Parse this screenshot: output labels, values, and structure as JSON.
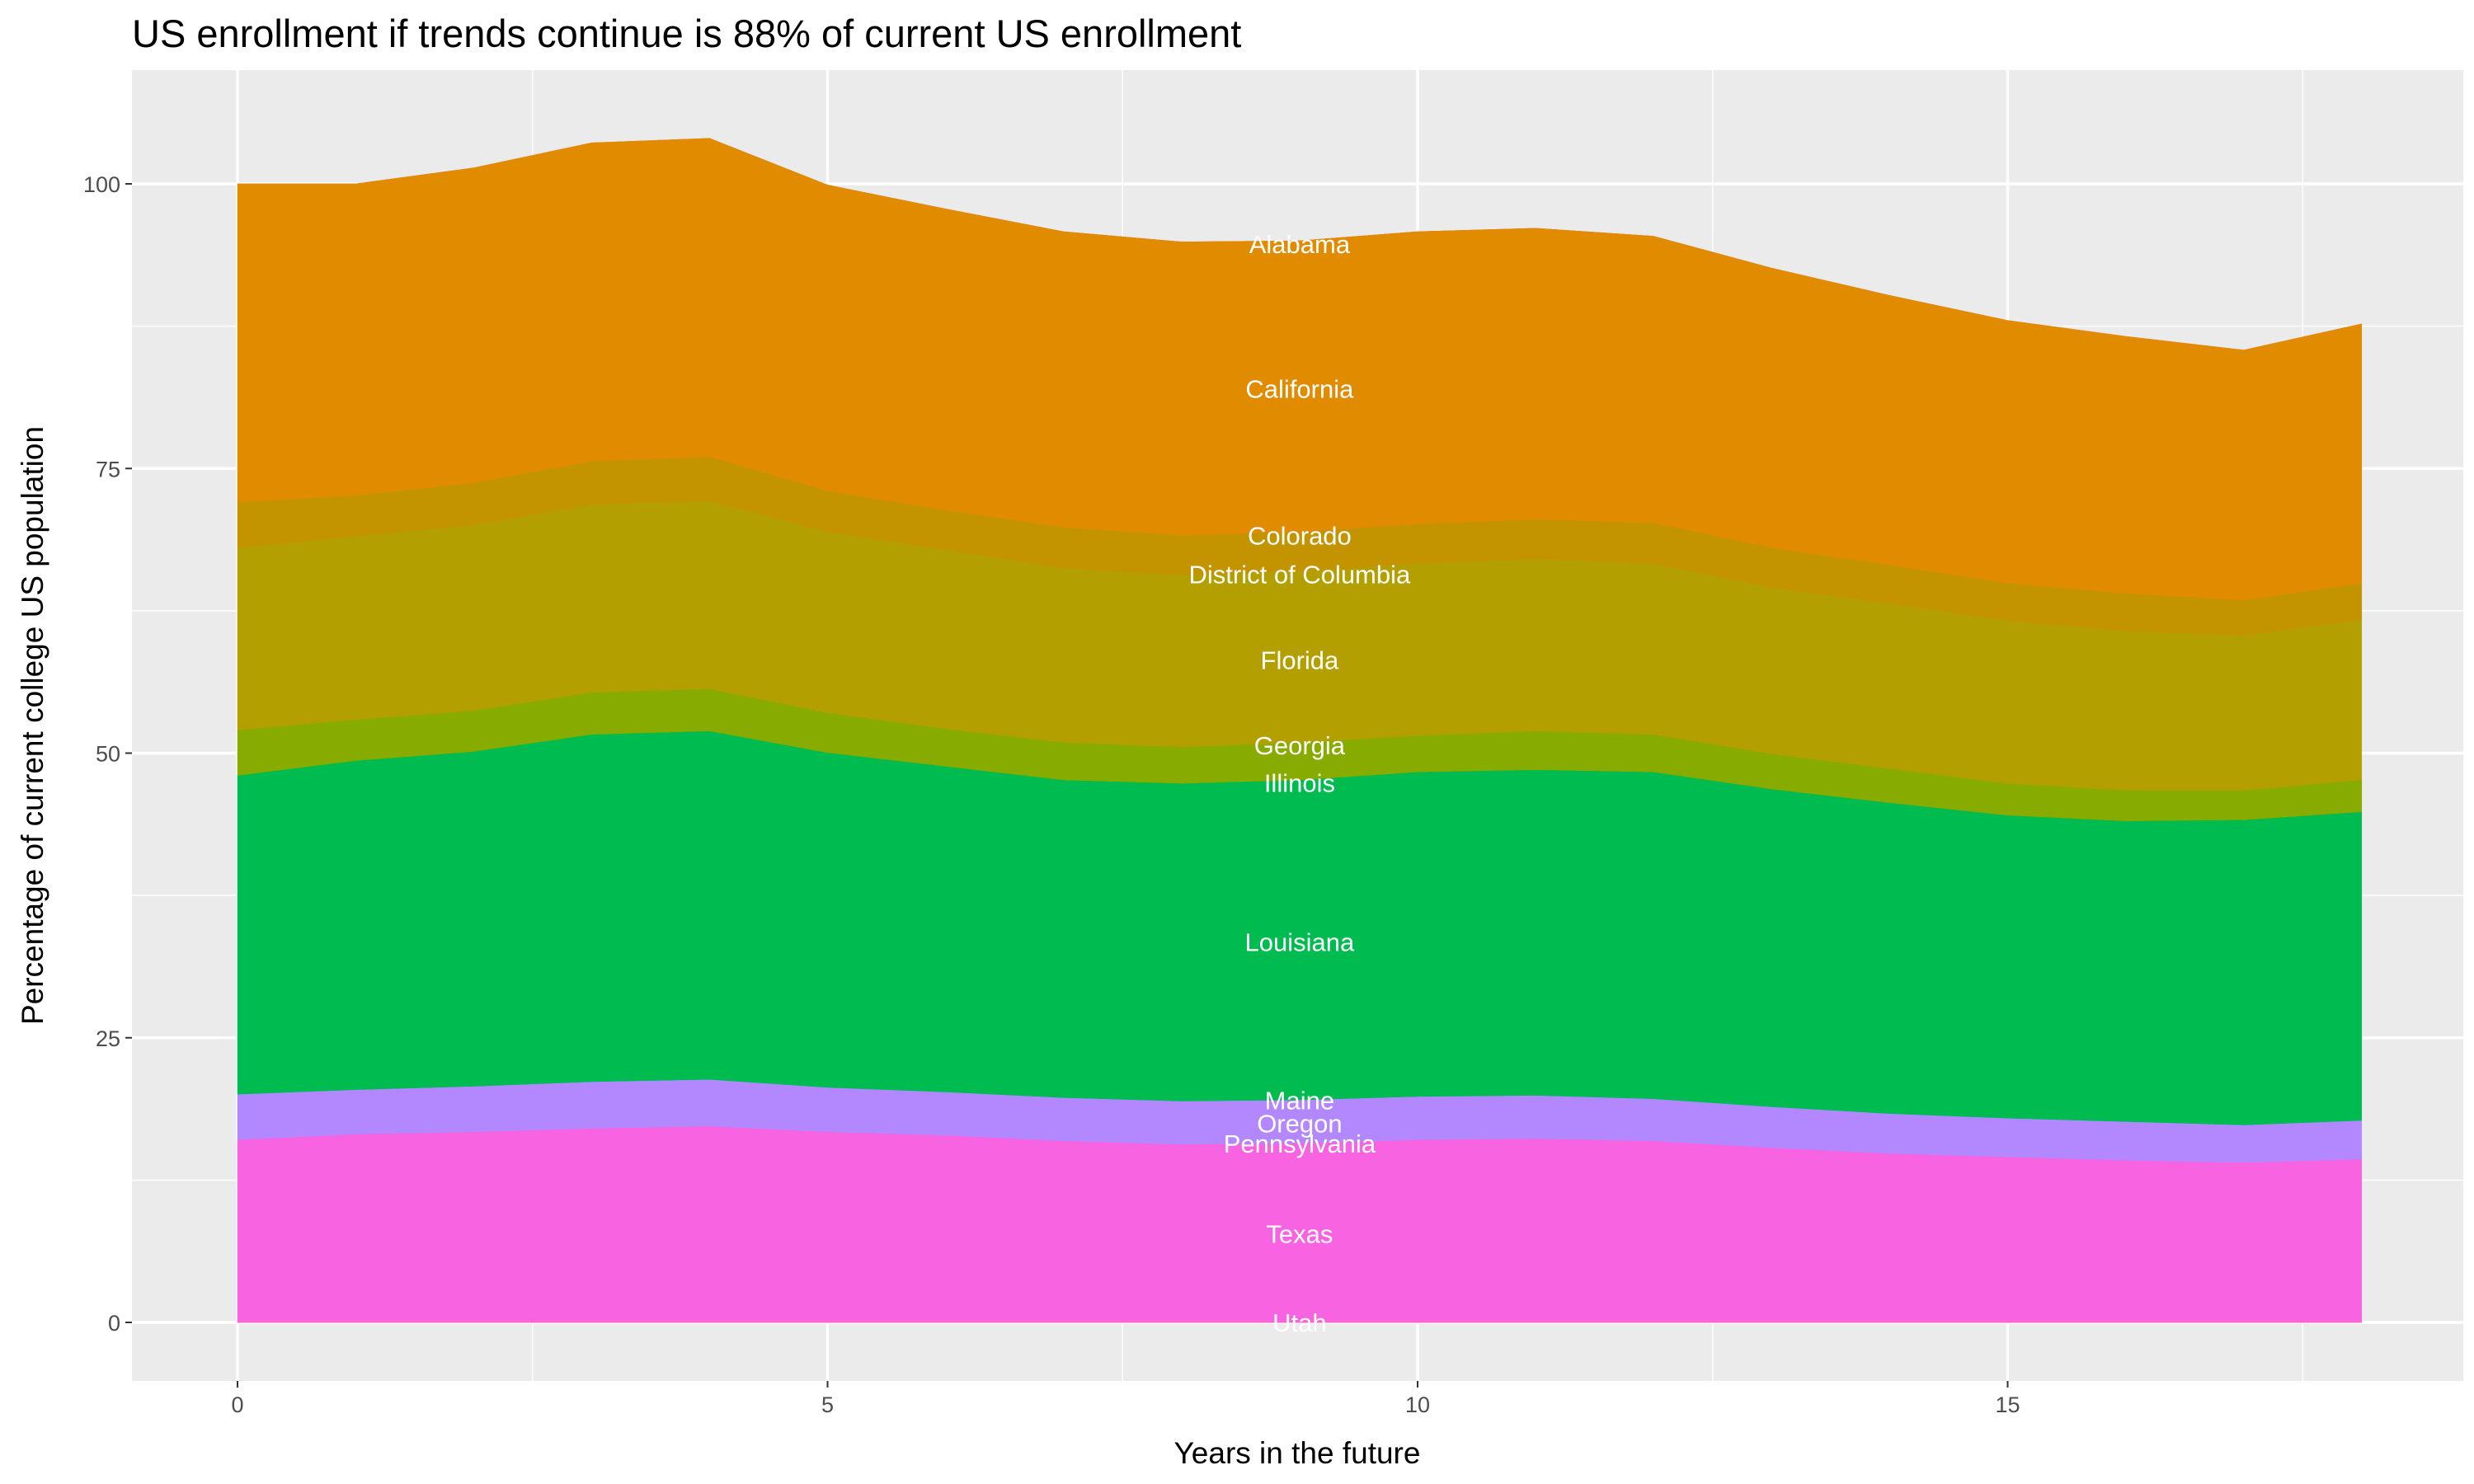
{
  "chart_data": {
    "type": "area",
    "stacked": true,
    "title": "US enrollment if trends continue is 88% of current US enrollment",
    "xlabel": "Years in the future",
    "ylabel": "Percentage of current college US population",
    "xlim": [
      -1.8,
      37.2
    ],
    "ylim": [
      -4.7,
      108.6
    ],
    "x_ticks": [
      0,
      5,
      10,
      15
    ],
    "y_ticks": [
      0,
      25,
      50,
      75,
      100
    ],
    "grid": true,
    "legend": "none",
    "label_x": 9,
    "x": [
      0,
      1,
      2,
      3,
      4,
      5,
      6,
      7,
      8,
      9,
      10,
      11,
      12,
      13,
      14,
      15,
      16,
      17,
      18
    ],
    "series": [
      {
        "name": "Alabama",
        "color": "#F8766D",
        "label_y": 94.7,
        "values": [
          0,
          0,
          0,
          0,
          0,
          0,
          0,
          0,
          0,
          0,
          0,
          0,
          0,
          0,
          0,
          0,
          0,
          0,
          0
        ]
      },
      {
        "name": "California",
        "color": "#E08B00",
        "label_y": 82.0,
        "values": [
          28,
          27.4,
          27.7,
          28,
          28,
          26.9,
          26.5,
          26.0,
          25.8,
          25.6,
          25.7,
          25.6,
          25.2,
          24.6,
          23.7,
          23.1,
          22.6,
          22.0,
          22.8
        ]
      },
      {
        "name": "Colorado",
        "color": "#C49400",
        "label_y": 69.1,
        "values": [
          4,
          3.6,
          3.7,
          3.8,
          3.9,
          3.6,
          3.5,
          3.6,
          3.5,
          3.5,
          3.5,
          3.5,
          3.6,
          3.5,
          3.4,
          3.3,
          3.3,
          3.1,
          3.2
        ]
      },
      {
        "name": "District of Columbia",
        "color": "#BC9C00",
        "label_y": 65.7,
        "values": [
          0,
          0,
          0,
          0,
          0,
          0,
          0,
          0,
          0,
          0,
          0,
          0,
          0,
          0,
          0,
          0,
          0,
          0,
          0
        ]
      },
      {
        "name": "Florida",
        "color": "#B3A000",
        "label_y": 58.2,
        "values": [
          16,
          16.1,
          16.3,
          16.5,
          16.5,
          15.9,
          15.7,
          15.3,
          15.1,
          15.0,
          15.1,
          15.1,
          15.0,
          14.6,
          14.5,
          14.3,
          14.0,
          13.6,
          14.1
        ]
      },
      {
        "name": "Georgia",
        "color": "#88AB00",
        "label_y": 50.7,
        "values": [
          4,
          3.6,
          3.6,
          3.7,
          3.7,
          3.5,
          3.3,
          3.3,
          3.2,
          3.3,
          3.2,
          3.4,
          3.3,
          3.1,
          3.0,
          2.8,
          2.7,
          2.6,
          2.8
        ]
      },
      {
        "name": "Illinois",
        "color": "#24B700",
        "label_y": 47.4,
        "values": [
          0,
          0,
          0,
          0,
          0,
          0,
          0,
          0,
          0,
          0,
          0,
          0,
          0,
          0,
          0,
          0,
          0,
          0,
          0
        ]
      },
      {
        "name": "Louisiana",
        "color": "#00BB50",
        "label_y": 33.4,
        "values": [
          28,
          28.9,
          29.4,
          30.5,
          30.6,
          29.4,
          28.6,
          27.9,
          27.9,
          28.1,
          28.5,
          28.6,
          28.7,
          27.9,
          27.3,
          26.6,
          26.4,
          26.8,
          27.1
        ]
      },
      {
        "name": "Maine",
        "color": "#00BBDA",
        "label_y": 19.5,
        "values": [
          0,
          0,
          0,
          0,
          0,
          0,
          0,
          0,
          0,
          0,
          0,
          0,
          0,
          0,
          0,
          0,
          0,
          0,
          0
        ]
      },
      {
        "name": "Oregon",
        "color": "#B388FF",
        "label_y": 17.5,
        "values": [
          4,
          3.9,
          4,
          4.1,
          4.1,
          3.9,
          3.8,
          3.8,
          3.8,
          3.8,
          3.8,
          3.8,
          3.7,
          3.6,
          3.5,
          3.4,
          3.4,
          3.3,
          3.4
        ]
      },
      {
        "name": "Pennsylvania",
        "color": "#D575FE",
        "label_y": 15.7,
        "values": [
          0,
          0,
          0,
          0,
          0,
          0,
          0,
          0,
          0,
          0,
          0,
          0,
          0,
          0,
          0,
          0,
          0,
          0,
          0
        ]
      },
      {
        "name": "Texas",
        "color": "#F763E0",
        "label_y": 7.8,
        "values": [
          16,
          16.5,
          16.7,
          17,
          17.2,
          16.7,
          16.4,
          15.9,
          15.6,
          15.7,
          16,
          16.1,
          15.9,
          15.3,
          14.8,
          14.5,
          14.2,
          14.0,
          14.3
        ]
      },
      {
        "name": "Utah",
        "color": "#FF65AC",
        "label_y": 0,
        "values": [
          0,
          0,
          0,
          0,
          0,
          0,
          0,
          0,
          0,
          0,
          0,
          0,
          0,
          0,
          0,
          0,
          0,
          0,
          0
        ]
      }
    ]
  }
}
